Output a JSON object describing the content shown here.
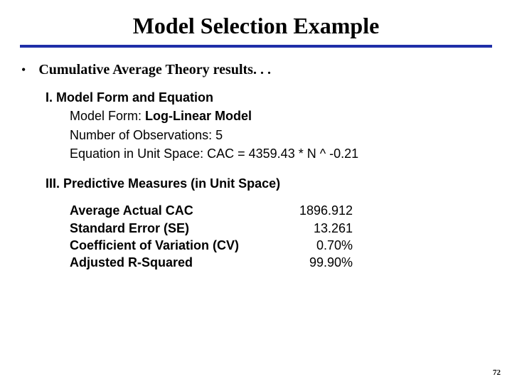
{
  "title": "Model Selection Example",
  "bullet": "Cumulative Average Theory results. . .",
  "section1": {
    "heading": "I.  Model Form and Equation",
    "modelFormLabel": "Model Form:",
    "modelFormValue": "Log-Linear Model",
    "numObs": "Number of Observations: 5",
    "equation": "Equation in Unit Space:   CAC = 4359.43 * N ^ -0.21"
  },
  "section3": {
    "heading": "III.  Predictive Measures (in Unit Space)",
    "rows": [
      {
        "label": "Average Actual CAC",
        "value": "1896.912"
      },
      {
        "label": "Standard Error (SE)",
        "value": "13.261"
      },
      {
        "label": "Coefficient of Variation (CV)",
        "value": "0.70%"
      },
      {
        "label": "Adjusted R-Squared",
        "value": "99.90%"
      }
    ]
  },
  "pageNumber": "72",
  "colors": {
    "dividerBlue": "#1f2fa8",
    "textBlack": "#000000",
    "background": "#ffffff"
  }
}
